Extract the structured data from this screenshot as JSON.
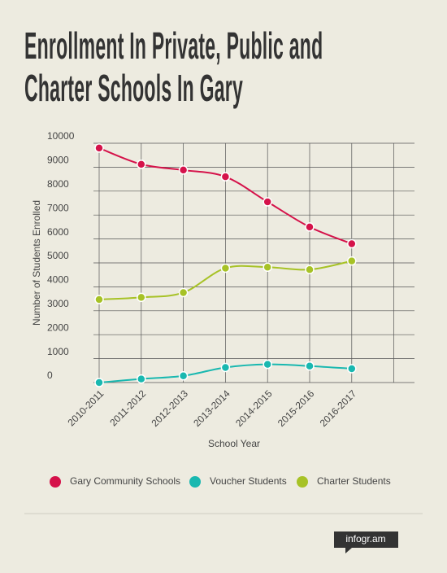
{
  "chart_data": {
    "type": "line",
    "title": "Enrollment In Private, Public and Charter Schools In Gary",
    "x_label": "School Year",
    "y_label": "Number of Students Enrolled",
    "categories": [
      "2010-2011",
      "2011-2012",
      "2012-2013",
      "2013-2014",
      "2014-2015",
      "2015-2016",
      "2016-2017"
    ],
    "series": [
      {
        "name": "Gary Community Schools",
        "color": "#d5124a",
        "values": [
          9800,
          9120,
          8880,
          8600,
          7550,
          6500,
          5800
        ]
      },
      {
        "name": "Voucher Students",
        "color": "#19b8b0",
        "values": [
          0,
          150,
          280,
          630,
          760,
          690,
          580
        ]
      },
      {
        "name": "Charter Students",
        "color": "#a7c226",
        "values": [
          3470,
          3560,
          3760,
          4780,
          4820,
          4720,
          5080
        ]
      }
    ],
    "ylim": [
      0,
      10000
    ],
    "yticks": [
      0,
      1000,
      2000,
      3000,
      4000,
      5000,
      6000,
      7000,
      8000,
      9000,
      10000
    ],
    "grid": true,
    "legend": "bottom",
    "footer": "infogr.am"
  }
}
